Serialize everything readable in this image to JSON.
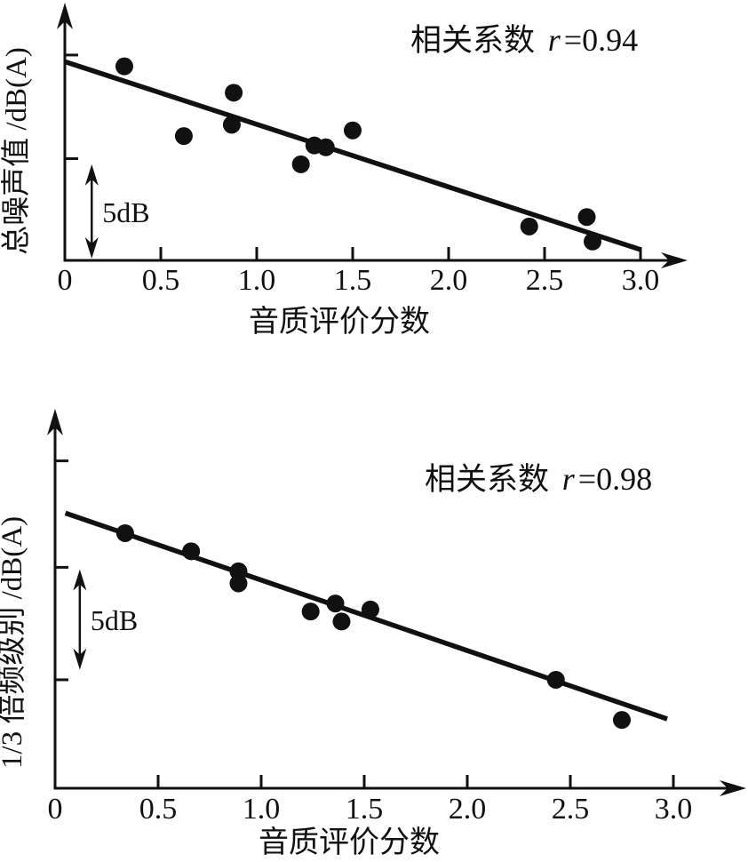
{
  "figure": {
    "background": "#ffffff",
    "ink_color": "#111111"
  },
  "chart_data": [
    {
      "id": "top",
      "type": "scatter",
      "title": "相关系数 r=0.94",
      "annotation": {
        "prefix": "相关系数 ",
        "symbol": "r",
        "value": "=0.94"
      },
      "correlation_r": 0.94,
      "xlabel": "音质评价分数",
      "ylabel": "总噪声值 /dB(A)",
      "x_origin_label": "0",
      "xlim": [
        0,
        3.25
      ],
      "x_tick_values": [
        0.5,
        1.0,
        1.5,
        2.0,
        2.5,
        3.0
      ],
      "x_tick_labels": [
        "0.5",
        "1.0",
        "1.5",
        "2.0",
        "2.5",
        "3.0"
      ],
      "y_axis_note": "y axis has no numeric labels; values are dB relative to the x-axis baseline, scale given by 5 dB bar",
      "y_tick_values_db": [
        5.4,
        10.9
      ],
      "scale_bar": {
        "label": "5dB",
        "x": 0.14,
        "from_db": 0.1,
        "to_db": 5.1
      },
      "points": [
        [
          0.31,
          10.3
        ],
        [
          0.62,
          6.6
        ],
        [
          0.87,
          7.2
        ],
        [
          0.88,
          8.9
        ],
        [
          1.23,
          5.1
        ],
        [
          1.3,
          6.1
        ],
        [
          1.36,
          6.0
        ],
        [
          1.5,
          6.9
        ],
        [
          2.42,
          1.8
        ],
        [
          2.72,
          2.3
        ],
        [
          2.75,
          1.0
        ]
      ],
      "trendline": {
        "x1": 0.0,
        "y1_db": 10.55,
        "x2": 3.0,
        "y2_db": 0.57
      },
      "legend": "none",
      "grid": false
    },
    {
      "id": "bottom",
      "type": "scatter",
      "title": "相关系数 r=0.98",
      "annotation": {
        "prefix": "相关系数 ",
        "symbol": "r",
        "value": "=0.98"
      },
      "correlation_r": 0.98,
      "xlabel": "音质评价分数",
      "ylabel": "1/3 倍频级别 /dB(A)",
      "x_origin_label": "0",
      "xlim": [
        0,
        3.35
      ],
      "x_tick_values": [
        0.5,
        1.0,
        1.5,
        2.0,
        2.5,
        3.0
      ],
      "x_tick_labels": [
        "0.5",
        "1.0",
        "1.5",
        "2.0",
        "2.5",
        "3.0"
      ],
      "y_axis_note": "y axis has no numeric labels; values are dB relative to the x-axis baseline, scale given by 5 dB bar",
      "y_tick_values_db": [
        5.4,
        11.0,
        16.3
      ],
      "scale_bar": {
        "label": "5dB",
        "x": 0.12,
        "from_db": 5.9,
        "to_db": 10.9
      },
      "points": [
        [
          0.34,
          12.7
        ],
        [
          0.66,
          11.8
        ],
        [
          0.89,
          10.8
        ],
        [
          0.89,
          10.2
        ],
        [
          1.24,
          8.8
        ],
        [
          1.36,
          9.2
        ],
        [
          1.39,
          8.3
        ],
        [
          1.53,
          8.9
        ],
        [
          2.43,
          5.4
        ],
        [
          2.75,
          3.4
        ]
      ],
      "trendline": {
        "x1": 0.05,
        "y1_db": 13.7,
        "x2": 2.97,
        "y2_db": 3.45
      },
      "legend": "none",
      "grid": false
    }
  ]
}
